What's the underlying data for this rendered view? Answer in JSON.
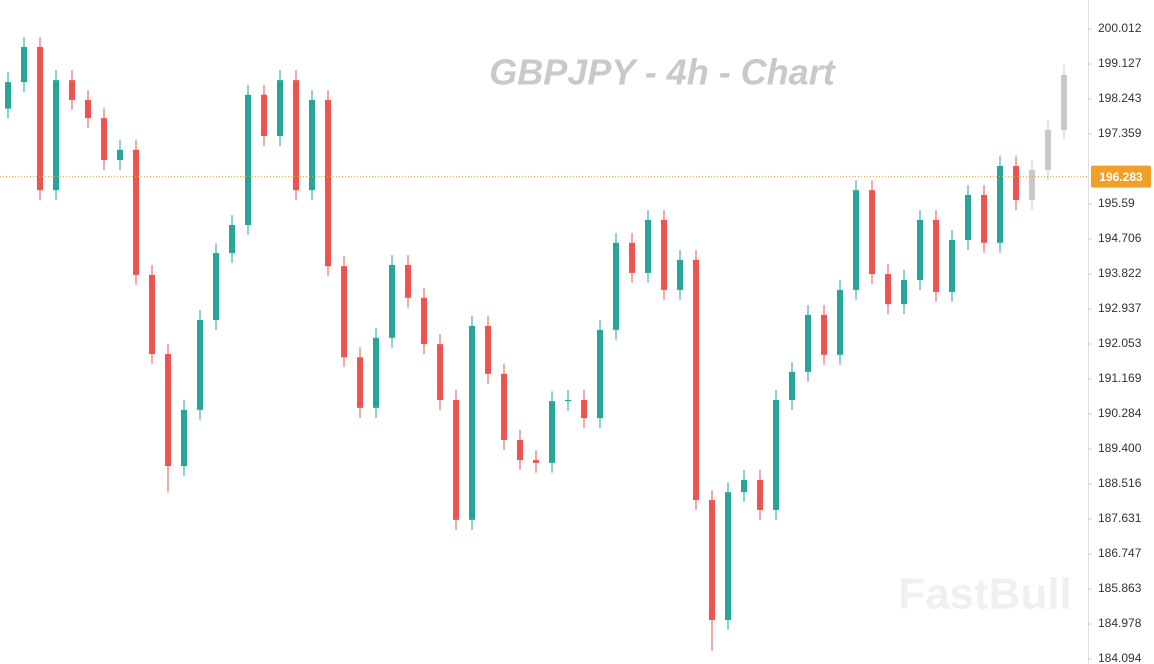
{
  "chart_data": {
    "type": "candlestick",
    "title": "GBPJPY - 4h - Chart",
    "watermark": "FastBull",
    "ylim": [
      183.968,
      200.745
    ],
    "yticks": [
      200.012,
      199.127,
      198.243,
      197.359,
      195.59,
      194.706,
      193.822,
      192.937,
      192.053,
      191.169,
      190.284,
      {
        "value": 189.4,
        "label": "189.400"
      },
      188.516,
      187.631,
      186.747,
      185.863,
      184.978,
      184.094
    ],
    "last_price": 196.283,
    "last_price_color": "#f0a029",
    "up_color": "#26a69a",
    "down_color": "#ef5350",
    "candles": {
      "open": [
        198.0,
        198.67,
        199.56,
        195.94,
        198.72,
        198.22,
        197.76,
        196.7,
        196.96,
        193.8,
        191.8,
        188.97,
        190.39,
        192.66,
        194.35,
        195.06,
        198.35,
        197.31,
        198.72,
        195.94,
        198.22,
        194.02,
        191.72,
        190.44,
        192.21,
        194.05,
        193.22,
        192.05,
        190.64,
        187.61,
        192.51,
        191.3,
        189.63,
        189.12,
        189.05,
        190.61,
        190.64,
        190.18,
        192.41,
        194.61,
        193.85,
        195.19,
        193.42,
        194.18,
        188.11,
        185.08,
        188.31,
        188.62,
        187.86,
        190.64,
        191.35,
        192.79,
        191.78,
        193.42,
        195.94,
        193.82,
        193.06,
        193.67,
        195.19,
        193.37,
        194.68,
        195.82,
        194.61,
        196.55
      ],
      "high": [
        198.92,
        199.81,
        199.81,
        198.97,
        198.97,
        198.47,
        198.01,
        197.21,
        197.21,
        194.05,
        192.05,
        190.64,
        192.91,
        194.6,
        195.31,
        198.6,
        198.6,
        198.97,
        198.97,
        198.47,
        198.47,
        194.27,
        191.97,
        192.46,
        194.3,
        194.3,
        193.47,
        192.3,
        190.89,
        192.76,
        192.76,
        191.55,
        189.88,
        189.37,
        190.86,
        190.89,
        190.89,
        192.66,
        194.86,
        194.86,
        195.44,
        195.44,
        194.43,
        194.43,
        188.36,
        188.56,
        188.87,
        188.87,
        190.89,
        191.6,
        193.04,
        193.04,
        193.67,
        196.19,
        196.19,
        194.07,
        193.92,
        195.44,
        195.44,
        194.93,
        196.07,
        196.07,
        196.8,
        196.8
      ],
      "low": [
        197.75,
        198.42,
        195.69,
        195.69,
        197.97,
        197.51,
        196.45,
        196.45,
        193.55,
        191.55,
        188.3,
        188.72,
        190.14,
        192.41,
        194.1,
        194.81,
        197.06,
        197.06,
        195.69,
        195.69,
        193.77,
        191.47,
        190.19,
        190.19,
        191.96,
        192.97,
        191.8,
        190.39,
        187.36,
        187.36,
        191.05,
        189.38,
        188.87,
        188.8,
        188.8,
        190.36,
        189.93,
        189.93,
        192.16,
        193.6,
        193.6,
        193.17,
        193.17,
        187.86,
        184.3,
        184.83,
        188.06,
        187.61,
        187.61,
        190.39,
        191.1,
        191.53,
        191.53,
        193.17,
        193.57,
        192.81,
        192.81,
        193.42,
        193.12,
        193.12,
        194.43,
        194.36,
        194.36,
        195.44
      ],
      "close": [
        198.67,
        199.56,
        195.94,
        198.72,
        198.22,
        197.76,
        196.7,
        196.96,
        193.8,
        191.8,
        188.97,
        190.39,
        192.66,
        194.35,
        195.06,
        198.35,
        197.31,
        198.72,
        195.94,
        198.22,
        194.02,
        191.72,
        190.44,
        192.21,
        194.05,
        193.22,
        192.05,
        190.64,
        187.61,
        192.51,
        191.3,
        189.63,
        189.12,
        189.05,
        190.61,
        190.64,
        190.18,
        192.41,
        194.61,
        193.85,
        195.19,
        193.42,
        194.18,
        188.11,
        185.08,
        188.31,
        188.62,
        187.86,
        190.64,
        191.35,
        192.79,
        191.78,
        193.42,
        195.94,
        193.82,
        193.06,
        193.67,
        195.19,
        193.37,
        194.68,
        195.82,
        194.61,
        196.55,
        195.69
      ]
    },
    "projection": {
      "color": "#c8c8c8",
      "open": [
        195.69,
        196.45,
        197.46
      ],
      "high": [
        196.7,
        197.71,
        199.1
      ],
      "low": [
        195.44,
        196.2,
        197.21
      ],
      "close": [
        196.45,
        197.46,
        198.85
      ]
    }
  }
}
